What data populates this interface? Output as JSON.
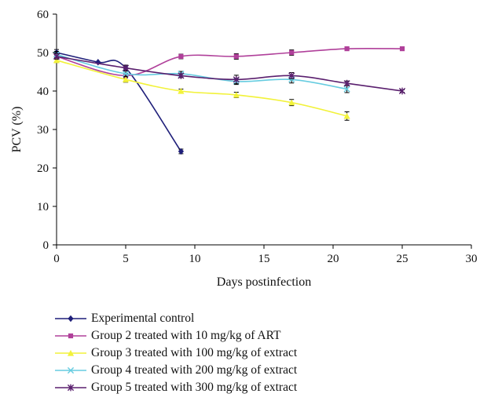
{
  "chart_data": {
    "type": "line",
    "title": "",
    "xlabel": "Days postinfection",
    "ylabel": "PCV (%)",
    "xlim": [
      0,
      30
    ],
    "ylim": [
      0,
      60
    ],
    "xticks": [
      0,
      5,
      10,
      15,
      20,
      25,
      30
    ],
    "yticks": [
      0,
      10,
      20,
      30,
      40,
      50,
      60
    ],
    "grid": false,
    "legend_position": "bottom",
    "series": [
      {
        "name": "Experimental control",
        "color": "#1f1f7a",
        "marker": "diamond",
        "x": [
          0,
          3,
          5,
          9
        ],
        "y": [
          50,
          47.5,
          46,
          24.3
        ],
        "err": [
          0.8,
          0,
          0.7,
          0.6
        ]
      },
      {
        "name": "Group 2 treated with 10 mg/kg of ART",
        "color": "#b0409a",
        "marker": "square",
        "x": [
          0,
          5,
          9,
          13,
          17,
          21,
          25
        ],
        "y": [
          49,
          44,
          49,
          49,
          50,
          51,
          51
        ],
        "err": [
          0.6,
          0.6,
          0.6,
          0.7,
          0.7,
          0.4,
          0.4
        ]
      },
      {
        "name": "Group 3 treated with 100 mg/kg of extract",
        "color": "#f2f23a",
        "marker": "triangle",
        "x": [
          0,
          5,
          9,
          13,
          17,
          21
        ],
        "y": [
          48,
          43,
          40,
          39,
          37,
          33.5
        ],
        "err": [
          0.6,
          0.7,
          0.5,
          0.7,
          0.8,
          1.1
        ]
      },
      {
        "name": "Group 4 treated with 200 mg/kg of extract",
        "color": "#66cce0",
        "marker": "x",
        "x": [
          0,
          5,
          9,
          13,
          17,
          21
        ],
        "y": [
          49.5,
          44.5,
          44.5,
          42.5,
          43,
          40.5
        ],
        "err": [
          0.8,
          0.7,
          0.6,
          0.8,
          0.9,
          0.9
        ]
      },
      {
        "name": "Group 5 treated with 300 mg/kg of extract",
        "color": "#5a1f6e",
        "marker": "star",
        "x": [
          0,
          5,
          9,
          13,
          17,
          21,
          25
        ],
        "y": [
          49,
          46,
          44,
          43,
          44,
          42,
          40
        ],
        "err": [
          0.7,
          0.7,
          0.5,
          1.1,
          0.8,
          0.6,
          0.3
        ]
      }
    ]
  }
}
